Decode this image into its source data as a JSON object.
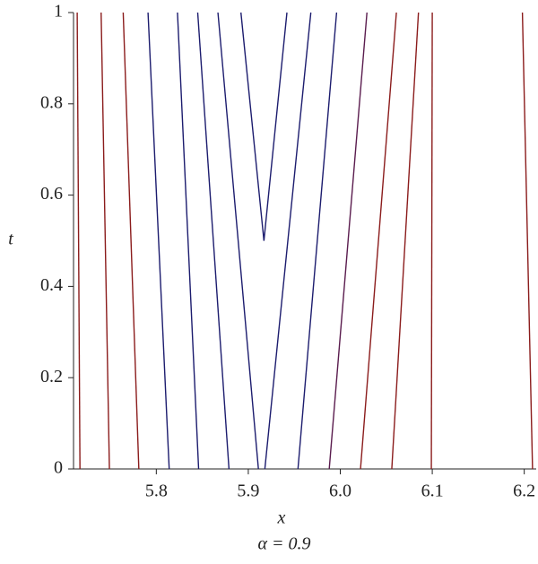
{
  "chart_data": {
    "type": "line",
    "title": "α = 0.9",
    "x_label": "x",
    "y_label": "t",
    "xlim": [
      5.71,
      6.213
    ],
    "ylim": [
      0,
      1
    ],
    "xticks": [
      5.8,
      5.9,
      {
        "value": 6,
        "label": "6.0"
      },
      6.1,
      6.2
    ],
    "yticks": [
      0,
      0.2,
      0.4,
      0.6,
      0.8,
      1
    ],
    "series": [
      {
        "color": "#8b1c1c",
        "x": [
          5.717,
          5.714
        ],
        "values": [
          0,
          1
        ]
      },
      {
        "color": "#8b1c1c",
        "x": [
          5.749,
          5.74
        ],
        "values": [
          0,
          1
        ]
      },
      {
        "color": "#8b1c1c",
        "x": [
          5.781,
          5.764
        ],
        "values": [
          0,
          1
        ]
      },
      {
        "color": "#1c1c6e",
        "x": [
          5.814,
          5.791
        ],
        "values": [
          0,
          1
        ]
      },
      {
        "color": "#1c1c6e",
        "x": [
          5.846,
          5.823
        ],
        "values": [
          0,
          1
        ]
      },
      {
        "color": "#1c1c6e",
        "x": [
          5.879,
          5.845
        ],
        "values": [
          0,
          1
        ]
      },
      {
        "color": "#1c1c6e",
        "x": [
          5.911,
          5.867
        ],
        "values": [
          0,
          1
        ]
      },
      {
        "color": "#1c1c6e",
        "x": [
          5.892,
          5.917,
          5.942
        ],
        "values": [
          1,
          0.5,
          1
        ]
      },
      {
        "color": "#1c1c6e",
        "x": [
          5.918,
          5.968
        ],
        "values": [
          0,
          1
        ]
      },
      {
        "color": "#1c1c6e",
        "x": [
          5.954,
          5.996
        ],
        "values": [
          0,
          1
        ]
      },
      {
        "color": "#5a1c4e",
        "x": [
          5.988,
          6.029
        ],
        "values": [
          0,
          1
        ]
      },
      {
        "color": "#8b1c1c",
        "x": [
          6.022,
          6.061
        ],
        "values": [
          0,
          1
        ]
      },
      {
        "color": "#8b1c1c",
        "x": [
          6.056,
          6.085
        ],
        "values": [
          0,
          1
        ]
      },
      {
        "color": "#8b1c1c",
        "x": [
          6.099,
          6.1
        ],
        "values": [
          0,
          1
        ]
      },
      {
        "color": "#8b1c1c",
        "x": [
          6.209,
          6.198
        ],
        "values": [
          0,
          1
        ]
      }
    ]
  }
}
